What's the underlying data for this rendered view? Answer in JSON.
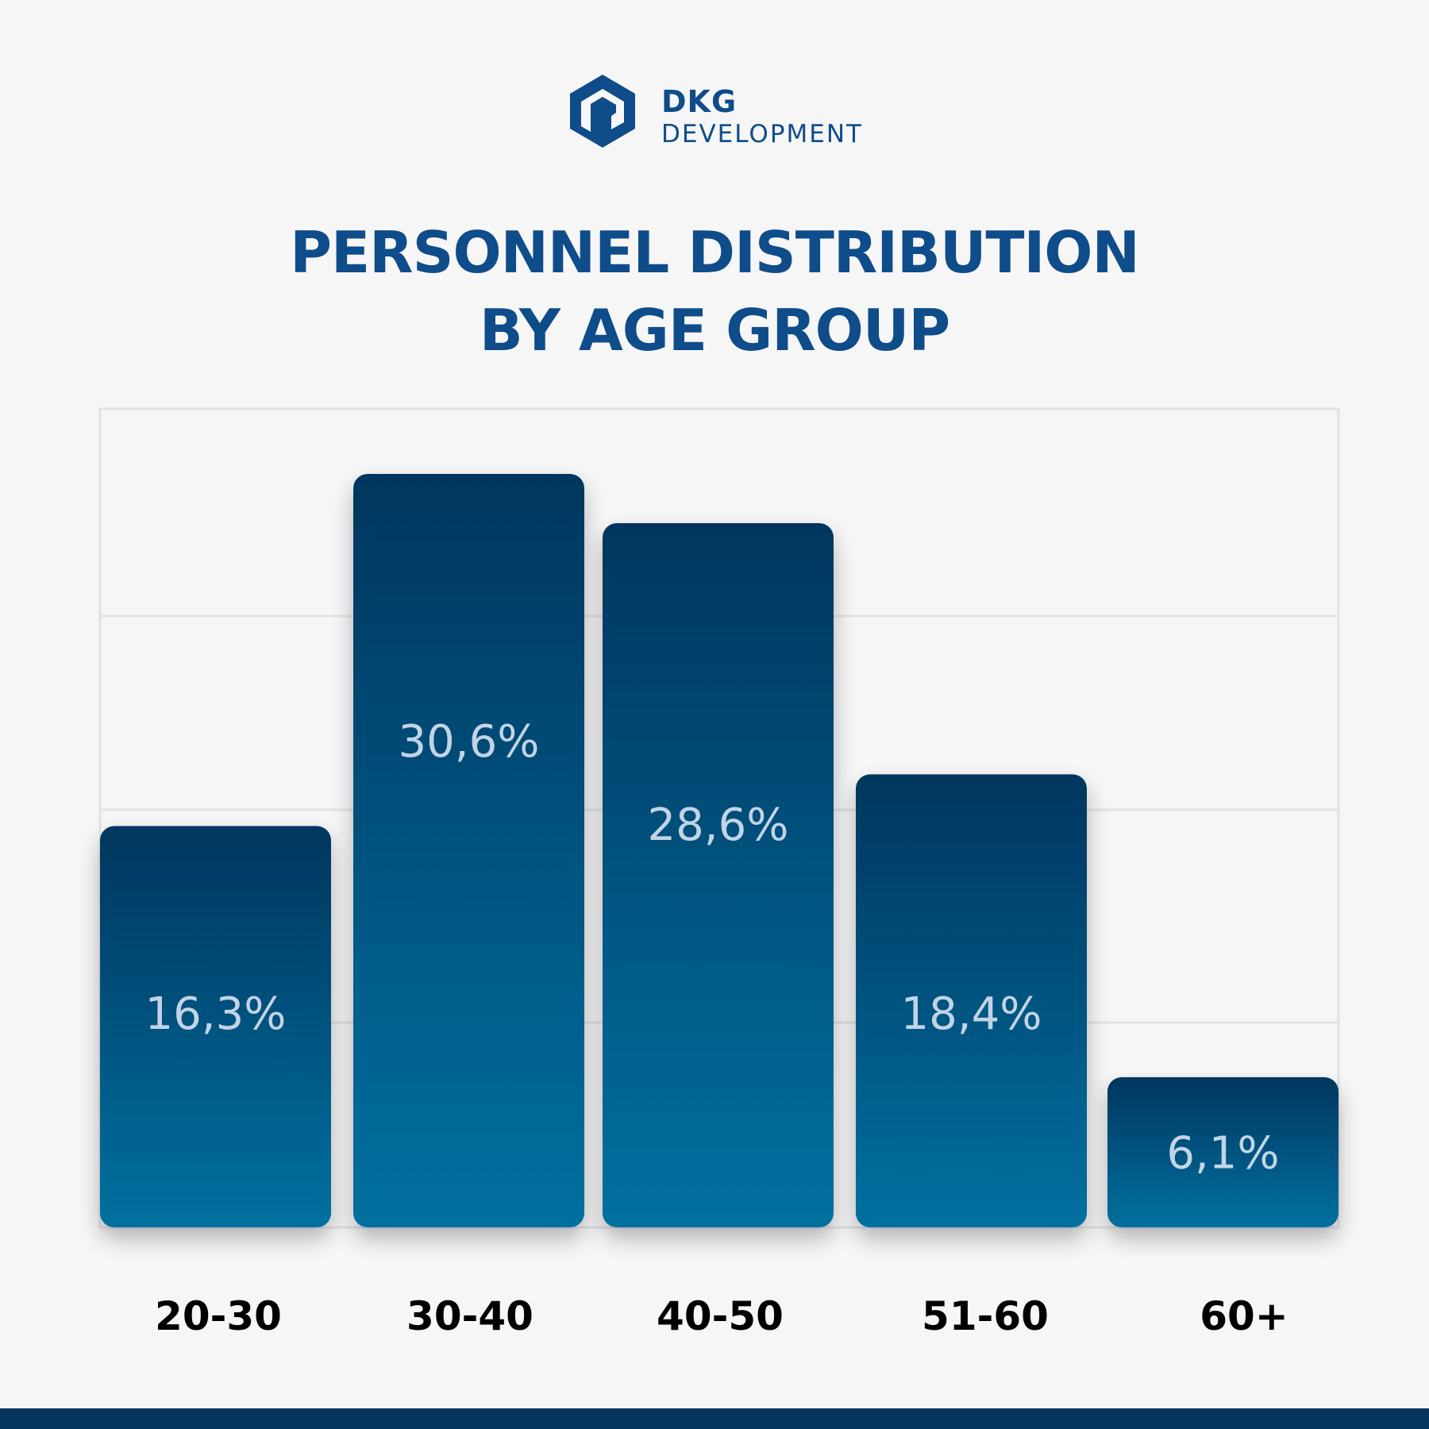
{
  "brand": {
    "name_line1": "DKG",
    "name_line2": "DEVELOPMENT",
    "color": "#0f4c8a",
    "icon": "dkg-logo-icon"
  },
  "title": {
    "line1": "PERSONNEL DISTRIBUTION",
    "line2": "BY AGE GROUP"
  },
  "chart_data": {
    "type": "bar",
    "categories": [
      "20-30",
      "30-40",
      "40-50",
      "51-60",
      "60+"
    ],
    "values": [
      16.3,
      30.6,
      28.6,
      18.4,
      6.1
    ],
    "value_labels": [
      "16,3%",
      "30,6%",
      "28,6%",
      "18,4%",
      "6,1%"
    ],
    "title": "PERSONNEL DISTRIBUTION BY AGE GROUP",
    "xlabel": "",
    "ylabel": "",
    "ylim": [
      0,
      35
    ],
    "grid": true,
    "legend": "none",
    "colors": {
      "bar_top": "#03365e",
      "bar_bottom": "#0670a0",
      "label_text": "#c2d4e6",
      "category_text": "#000000",
      "grid": "#e2e2e4"
    }
  }
}
